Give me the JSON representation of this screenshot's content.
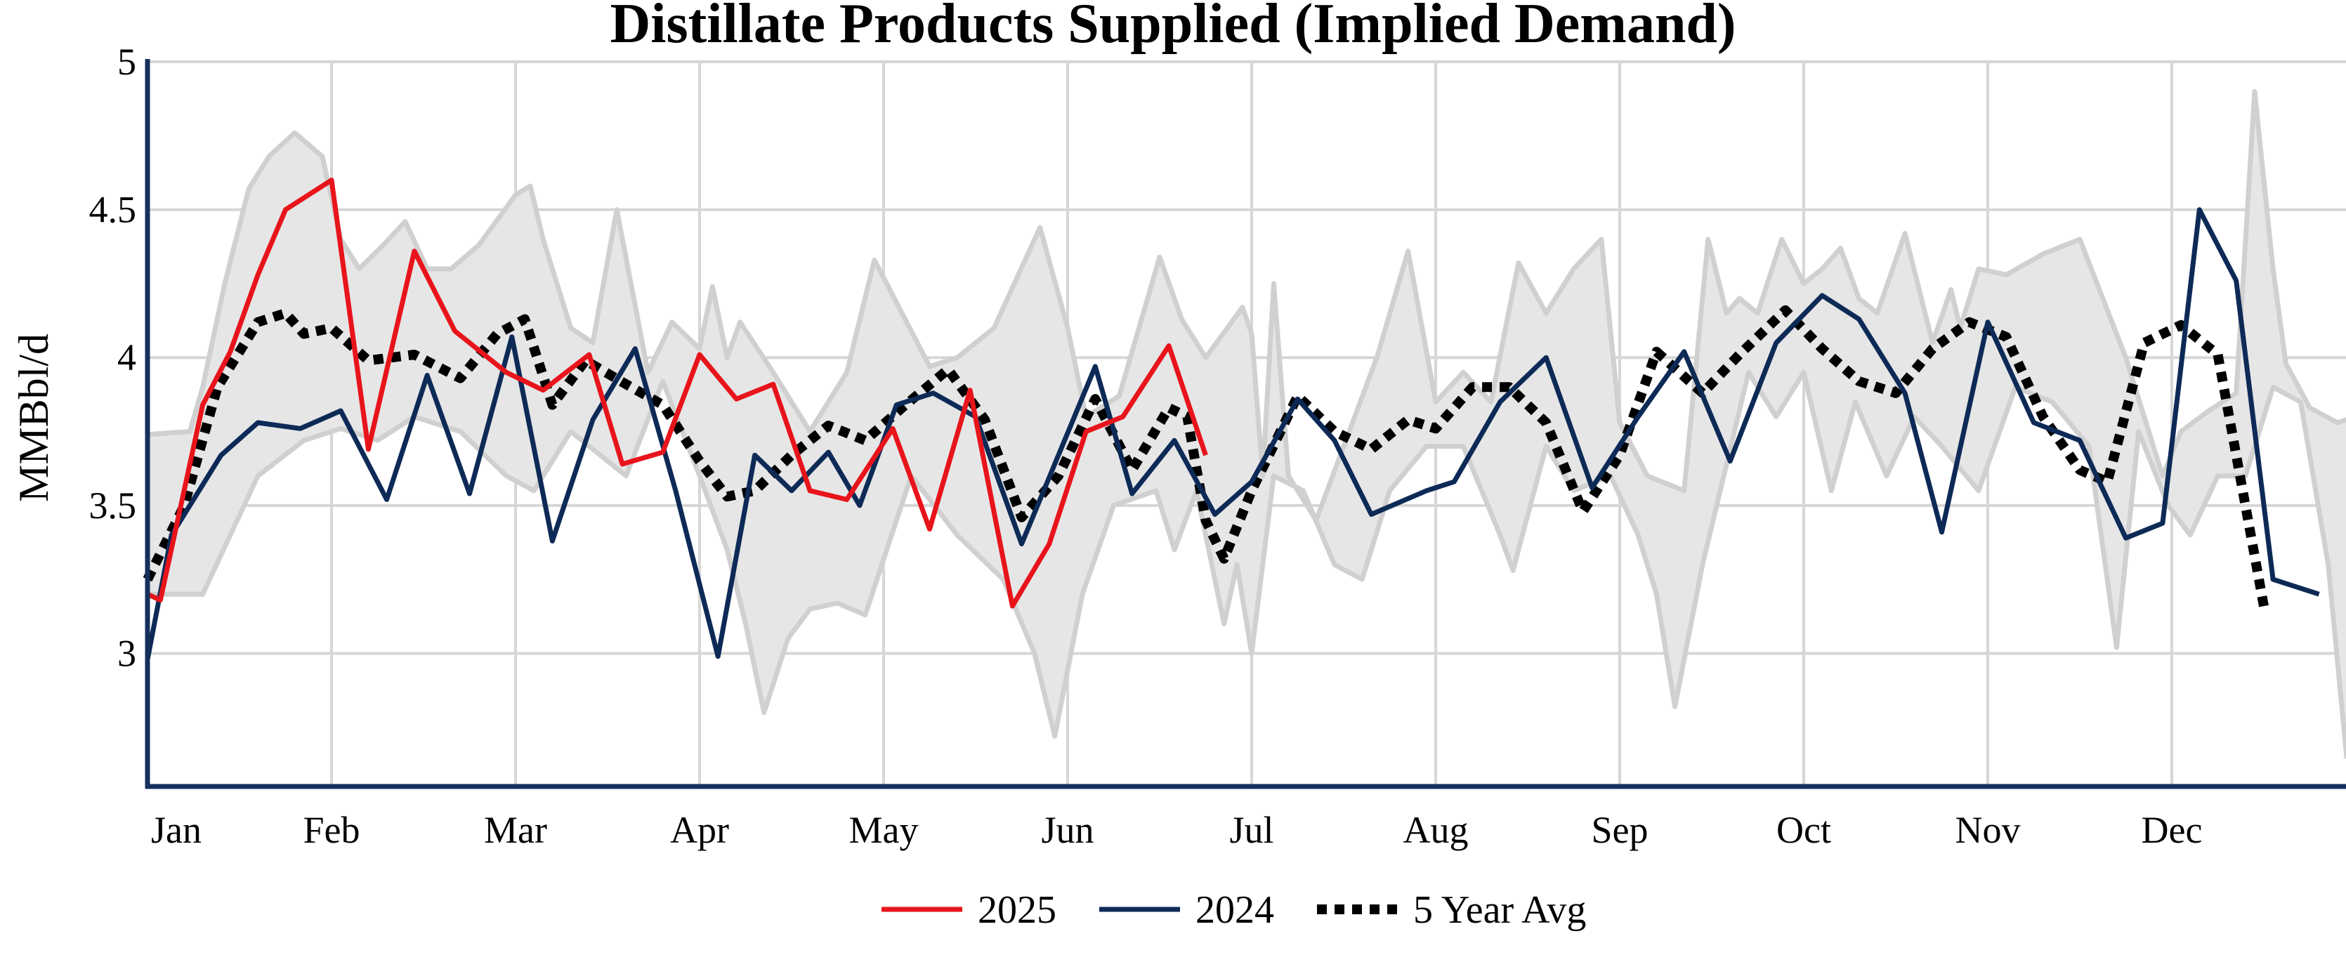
{
  "chart_data": {
    "type": "line",
    "title": "Distillate Products Supplied (Implied Demand)",
    "xlabel": "",
    "ylabel": "MMBbl/d",
    "x_tick_labels": [
      "Jan",
      "Feb",
      "Mar",
      "Apr",
      "May",
      "Jun",
      "Jul",
      "Aug",
      "Sep",
      "Oct",
      "Nov",
      "Dec"
    ],
    "y_tick_labels": [
      "3",
      "3.5",
      "4",
      "4.5",
      "5"
    ],
    "ylim": [
      2.55,
      5
    ],
    "xlim": [
      0,
      12
    ],
    "grid": true,
    "legend_position": "bottom-center",
    "colors": {
      "s2025": "#e8141b",
      "s2024": "#0d2a57",
      "avg": "#000000",
      "range_fill": "#e6e6e6",
      "range_stroke": "#d0d0d0",
      "grid": "#d6d6d6",
      "axis": "#14305e"
    },
    "range_band": {
      "upper": [
        [
          0.0,
          3.74
        ],
        [
          0.23,
          3.75
        ],
        [
          0.3,
          3.9
        ],
        [
          0.42,
          4.25
        ],
        [
          0.55,
          4.57
        ],
        [
          0.66,
          4.68
        ],
        [
          0.8,
          4.76
        ],
        [
          0.95,
          4.68
        ],
        [
          1.05,
          4.4
        ],
        [
          1.15,
          4.3
        ],
        [
          1.28,
          4.38
        ],
        [
          1.4,
          4.46
        ],
        [
          1.52,
          4.3
        ],
        [
          1.65,
          4.3
        ],
        [
          1.8,
          4.38
        ],
        [
          2.0,
          4.55
        ],
        [
          2.08,
          4.58
        ],
        [
          2.15,
          4.4
        ],
        [
          2.3,
          4.1
        ],
        [
          2.42,
          4.05
        ],
        [
          2.55,
          4.5
        ],
        [
          2.72,
          3.95
        ],
        [
          2.85,
          4.12
        ],
        [
          3.0,
          4.03
        ],
        [
          3.07,
          4.24
        ],
        [
          3.15,
          4.0
        ],
        [
          3.22,
          4.12
        ],
        [
          3.4,
          3.95
        ],
        [
          3.6,
          3.75
        ],
        [
          3.8,
          3.95
        ],
        [
          3.95,
          4.33
        ],
        [
          4.1,
          4.15
        ],
        [
          4.25,
          3.97
        ],
        [
          4.4,
          4.0
        ],
        [
          4.6,
          4.1
        ],
        [
          4.85,
          4.44
        ],
        [
          5.0,
          4.1
        ],
        [
          5.1,
          3.8
        ],
        [
          5.28,
          3.87
        ],
        [
          5.5,
          4.34
        ],
        [
          5.62,
          4.13
        ],
        [
          5.75,
          4.0
        ],
        [
          5.95,
          4.17
        ],
        [
          6.0,
          4.08
        ],
        [
          6.06,
          3.6
        ],
        [
          6.12,
          4.25
        ],
        [
          6.2,
          3.6
        ],
        [
          6.35,
          3.45
        ],
        [
          6.5,
          3.7
        ],
        [
          6.68,
          4.0
        ],
        [
          6.85,
          4.36
        ],
        [
          7.0,
          3.85
        ],
        [
          7.15,
          3.95
        ],
        [
          7.3,
          3.85
        ],
        [
          7.45,
          4.32
        ],
        [
          7.6,
          4.15
        ],
        [
          7.75,
          4.3
        ],
        [
          7.9,
          4.4
        ],
        [
          8.0,
          3.78
        ],
        [
          8.15,
          3.6
        ],
        [
          8.35,
          3.55
        ],
        [
          8.48,
          4.4
        ],
        [
          8.58,
          4.15
        ],
        [
          8.65,
          4.2
        ],
        [
          8.75,
          4.15
        ],
        [
          8.88,
          4.4
        ],
        [
          9.0,
          4.25
        ],
        [
          9.1,
          4.3
        ],
        [
          9.2,
          4.37
        ],
        [
          9.3,
          4.2
        ],
        [
          9.4,
          4.15
        ],
        [
          9.55,
          4.42
        ],
        [
          9.7,
          4.05
        ],
        [
          9.8,
          4.23
        ],
        [
          9.85,
          4.1
        ],
        [
          9.95,
          4.3
        ],
        [
          10.1,
          4.28
        ],
        [
          10.3,
          4.35
        ],
        [
          10.5,
          4.4
        ],
        [
          10.75,
          4.0
        ],
        [
          10.95,
          3.6
        ],
        [
          11.05,
          3.75
        ],
        [
          11.2,
          3.82
        ],
        [
          11.35,
          3.88
        ],
        [
          11.45,
          4.9
        ],
        [
          11.55,
          4.3
        ],
        [
          11.62,
          3.98
        ],
        [
          11.75,
          3.83
        ],
        [
          11.9,
          3.78
        ],
        [
          12.0,
          3.8
        ]
      ],
      "lower": [
        [
          0.0,
          3.2
        ],
        [
          0.3,
          3.2
        ],
        [
          0.6,
          3.6
        ],
        [
          0.85,
          3.72
        ],
        [
          1.05,
          3.76
        ],
        [
          1.25,
          3.72
        ],
        [
          1.45,
          3.8
        ],
        [
          1.7,
          3.75
        ],
        [
          1.95,
          3.6
        ],
        [
          2.1,
          3.55
        ],
        [
          2.3,
          3.75
        ],
        [
          2.6,
          3.6
        ],
        [
          2.8,
          3.92
        ],
        [
          3.0,
          3.6
        ],
        [
          3.15,
          3.35
        ],
        [
          3.25,
          3.1
        ],
        [
          3.35,
          2.8
        ],
        [
          3.48,
          3.05
        ],
        [
          3.6,
          3.15
        ],
        [
          3.75,
          3.17
        ],
        [
          3.9,
          3.13
        ],
        [
          4.15,
          3.6
        ],
        [
          4.4,
          3.4
        ],
        [
          4.65,
          3.25
        ],
        [
          4.82,
          3.0
        ],
        [
          4.93,
          2.72
        ],
        [
          5.08,
          3.2
        ],
        [
          5.25,
          3.5
        ],
        [
          5.48,
          3.55
        ],
        [
          5.58,
          3.35
        ],
        [
          5.7,
          3.55
        ],
        [
          5.85,
          3.1
        ],
        [
          5.92,
          3.3
        ],
        [
          6.0,
          3.0
        ],
        [
          6.12,
          3.6
        ],
        [
          6.28,
          3.55
        ],
        [
          6.45,
          3.3
        ],
        [
          6.6,
          3.25
        ],
        [
          6.75,
          3.55
        ],
        [
          6.95,
          3.7
        ],
        [
          7.15,
          3.7
        ],
        [
          7.35,
          3.4
        ],
        [
          7.42,
          3.28
        ],
        [
          7.6,
          3.7
        ],
        [
          7.75,
          3.55
        ],
        [
          7.95,
          3.6
        ],
        [
          8.1,
          3.4
        ],
        [
          8.2,
          3.2
        ],
        [
          8.3,
          2.82
        ],
        [
          8.45,
          3.3
        ],
        [
          8.7,
          3.95
        ],
        [
          8.85,
          3.8
        ],
        [
          9.0,
          3.95
        ],
        [
          9.15,
          3.55
        ],
        [
          9.28,
          3.85
        ],
        [
          9.45,
          3.6
        ],
        [
          9.6,
          3.8
        ],
        [
          9.75,
          3.7
        ],
        [
          9.95,
          3.55
        ],
        [
          10.15,
          3.9
        ],
        [
          10.35,
          3.85
        ],
        [
          10.55,
          3.7
        ],
        [
          10.7,
          3.02
        ],
        [
          10.82,
          3.75
        ],
        [
          10.98,
          3.5
        ],
        [
          11.1,
          3.4
        ],
        [
          11.25,
          3.6
        ],
        [
          11.4,
          3.6
        ],
        [
          11.55,
          3.9
        ],
        [
          11.7,
          3.85
        ],
        [
          11.85,
          3.3
        ],
        [
          11.95,
          2.65
        ],
        [
          12.0,
          2.75
        ]
      ]
    },
    "series": [
      {
        "name": "2025",
        "points": [
          [
            0.0,
            3.2
          ],
          [
            0.07,
            3.18
          ],
          [
            0.3,
            3.84
          ],
          [
            0.45,
            4.02
          ],
          [
            0.6,
            4.28
          ],
          [
            0.75,
            4.5
          ],
          [
            1.0,
            4.6
          ],
          [
            1.2,
            3.69
          ],
          [
            1.45,
            4.36
          ],
          [
            1.67,
            4.09
          ],
          [
            1.95,
            3.95
          ],
          [
            2.15,
            3.89
          ],
          [
            2.4,
            4.01
          ],
          [
            2.58,
            3.64
          ],
          [
            2.8,
            3.68
          ],
          [
            3.0,
            4.01
          ],
          [
            3.2,
            3.86
          ],
          [
            3.4,
            3.91
          ],
          [
            3.6,
            3.55
          ],
          [
            3.8,
            3.52
          ],
          [
            4.05,
            3.76
          ],
          [
            4.25,
            3.42
          ],
          [
            4.47,
            3.89
          ],
          [
            4.7,
            3.16
          ],
          [
            4.9,
            3.37
          ],
          [
            5.1,
            3.75
          ],
          [
            5.3,
            3.8
          ],
          [
            5.55,
            4.04
          ],
          [
            5.75,
            3.67
          ]
        ]
      },
      {
        "name": "2024",
        "points": [
          [
            0.0,
            2.98
          ],
          [
            0.13,
            3.4
          ],
          [
            0.4,
            3.67
          ],
          [
            0.6,
            3.78
          ],
          [
            0.83,
            3.76
          ],
          [
            1.05,
            3.82
          ],
          [
            1.3,
            3.52
          ],
          [
            1.52,
            3.94
          ],
          [
            1.75,
            3.54
          ],
          [
            1.98,
            4.07
          ],
          [
            2.2,
            3.38
          ],
          [
            2.42,
            3.79
          ],
          [
            2.65,
            4.03
          ],
          [
            2.87,
            3.55
          ],
          [
            3.1,
            2.99
          ],
          [
            3.3,
            3.67
          ],
          [
            3.5,
            3.55
          ],
          [
            3.7,
            3.68
          ],
          [
            3.87,
            3.5
          ],
          [
            4.07,
            3.84
          ],
          [
            4.27,
            3.88
          ],
          [
            4.5,
            3.8
          ],
          [
            4.75,
            3.37
          ],
          [
            4.95,
            3.67
          ],
          [
            5.15,
            3.97
          ],
          [
            5.35,
            3.54
          ],
          [
            5.58,
            3.72
          ],
          [
            5.8,
            3.47
          ],
          [
            6.0,
            3.58
          ],
          [
            6.25,
            3.86
          ],
          [
            6.45,
            3.72
          ],
          [
            6.65,
            3.47
          ],
          [
            6.95,
            3.55
          ],
          [
            7.1,
            3.58
          ],
          [
            7.35,
            3.85
          ],
          [
            7.6,
            4.0
          ],
          [
            7.85,
            3.56
          ],
          [
            8.1,
            3.8
          ],
          [
            8.35,
            4.02
          ],
          [
            8.6,
            3.65
          ],
          [
            8.85,
            4.05
          ],
          [
            9.1,
            4.21
          ],
          [
            9.3,
            4.13
          ],
          [
            9.55,
            3.88
          ],
          [
            9.75,
            3.41
          ],
          [
            10.0,
            4.12
          ],
          [
            10.25,
            3.78
          ],
          [
            10.5,
            3.72
          ],
          [
            10.75,
            3.39
          ],
          [
            10.95,
            3.44
          ],
          [
            11.15,
            4.5
          ],
          [
            11.35,
            4.26
          ],
          [
            11.55,
            3.25
          ],
          [
            11.8,
            3.2
          ]
        ]
      },
      {
        "name": "5 Year Avg",
        "points": [
          [
            0.0,
            3.25
          ],
          [
            0.2,
            3.5
          ],
          [
            0.38,
            3.9
          ],
          [
            0.6,
            4.12
          ],
          [
            0.75,
            4.15
          ],
          [
            0.85,
            4.08
          ],
          [
            1.0,
            4.1
          ],
          [
            1.2,
            3.99
          ],
          [
            1.45,
            4.01
          ],
          [
            1.7,
            3.93
          ],
          [
            1.9,
            4.08
          ],
          [
            2.05,
            4.13
          ],
          [
            2.2,
            3.84
          ],
          [
            2.38,
            3.99
          ],
          [
            2.6,
            3.91
          ],
          [
            2.8,
            3.84
          ],
          [
            3.0,
            3.65
          ],
          [
            3.15,
            3.53
          ],
          [
            3.3,
            3.55
          ],
          [
            3.5,
            3.67
          ],
          [
            3.7,
            3.77
          ],
          [
            3.9,
            3.72
          ],
          [
            4.1,
            3.83
          ],
          [
            4.35,
            3.96
          ],
          [
            4.55,
            3.79
          ],
          [
            4.75,
            3.46
          ],
          [
            4.95,
            3.6
          ],
          [
            5.15,
            3.86
          ],
          [
            5.35,
            3.62
          ],
          [
            5.55,
            3.83
          ],
          [
            5.65,
            3.8
          ],
          [
            5.75,
            3.45
          ],
          [
            5.85,
            3.32
          ],
          [
            6.0,
            3.55
          ],
          [
            6.25,
            3.87
          ],
          [
            6.45,
            3.75
          ],
          [
            6.65,
            3.69
          ],
          [
            6.85,
            3.79
          ],
          [
            7.0,
            3.76
          ],
          [
            7.2,
            3.9
          ],
          [
            7.4,
            3.9
          ],
          [
            7.6,
            3.78
          ],
          [
            7.8,
            3.48
          ],
          [
            8.0,
            3.67
          ],
          [
            8.2,
            4.02
          ],
          [
            8.45,
            3.88
          ],
          [
            8.65,
            4.01
          ],
          [
            8.9,
            4.16
          ],
          [
            9.1,
            4.03
          ],
          [
            9.3,
            3.92
          ],
          [
            9.5,
            3.88
          ],
          [
            9.7,
            4.03
          ],
          [
            9.9,
            4.12
          ],
          [
            10.1,
            4.07
          ],
          [
            10.3,
            3.8
          ],
          [
            10.5,
            3.62
          ],
          [
            10.65,
            3.58
          ],
          [
            10.85,
            4.05
          ],
          [
            11.05,
            4.11
          ],
          [
            11.25,
            4.01
          ],
          [
            11.5,
            3.16
          ]
        ]
      }
    ]
  }
}
